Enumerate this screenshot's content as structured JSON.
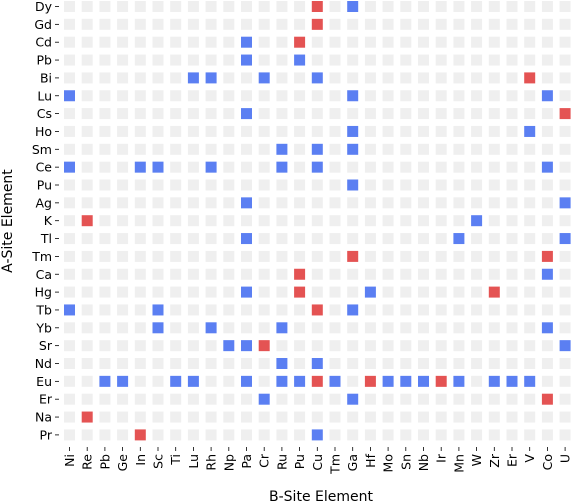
{
  "chart_data": {
    "type": "heatmap",
    "title": "",
    "xlabel": "B-Site Element",
    "ylabel": "A-Site Element",
    "x_categories": [
      "Ni",
      "Re",
      "Pb",
      "Ge",
      "In",
      "Sc",
      "Ti",
      "Lu",
      "Rh",
      "Np",
      "Pa",
      "Cr",
      "Ru",
      "Pu",
      "Cu",
      "Tm",
      "Ga",
      "Hf",
      "Mo",
      "Sn",
      "Nb",
      "Ir",
      "Mn",
      "W",
      "Zr",
      "Er",
      "V",
      "Co",
      "U"
    ],
    "y_categories": [
      "Dy",
      "Gd",
      "Cd",
      "Pb",
      "Bi",
      "Lu",
      "Cs",
      "Ho",
      "Sm",
      "Ce",
      "Pu",
      "Ag",
      "K",
      "Tl",
      "Tm",
      "Ca",
      "Hg",
      "Tb",
      "Yb",
      "Sr",
      "Nd",
      "Eu",
      "Er",
      "Na",
      "Pr"
    ],
    "grid": false,
    "legend": "none",
    "colors": {
      "empty": "#efefef",
      "blue": "#5b7ff2",
      "red": "#e45353"
    },
    "cells": [
      {
        "a": "Dy",
        "b": "Cu",
        "v": "red"
      },
      {
        "a": "Dy",
        "b": "Ga",
        "v": "blue"
      },
      {
        "a": "Gd",
        "b": "Cu",
        "v": "red"
      },
      {
        "a": "Cd",
        "b": "Pa",
        "v": "blue"
      },
      {
        "a": "Cd",
        "b": "Pu",
        "v": "red"
      },
      {
        "a": "Pb",
        "b": "Pa",
        "v": "blue"
      },
      {
        "a": "Pb",
        "b": "Pu",
        "v": "blue"
      },
      {
        "a": "Bi",
        "b": "Lu",
        "v": "blue"
      },
      {
        "a": "Bi",
        "b": "Rh",
        "v": "blue"
      },
      {
        "a": "Bi",
        "b": "Cr",
        "v": "blue"
      },
      {
        "a": "Bi",
        "b": "Cu",
        "v": "blue"
      },
      {
        "a": "Bi",
        "b": "V",
        "v": "red"
      },
      {
        "a": "Lu",
        "b": "Ni",
        "v": "blue"
      },
      {
        "a": "Lu",
        "b": "Ga",
        "v": "blue"
      },
      {
        "a": "Lu",
        "b": "Co",
        "v": "blue"
      },
      {
        "a": "Cs",
        "b": "Pa",
        "v": "blue"
      },
      {
        "a": "Cs",
        "b": "U",
        "v": "red"
      },
      {
        "a": "Ho",
        "b": "Ga",
        "v": "blue"
      },
      {
        "a": "Ho",
        "b": "V",
        "v": "blue"
      },
      {
        "a": "Sm",
        "b": "Ru",
        "v": "blue"
      },
      {
        "a": "Sm",
        "b": "Cu",
        "v": "blue"
      },
      {
        "a": "Sm",
        "b": "Ga",
        "v": "blue"
      },
      {
        "a": "Ce",
        "b": "Ni",
        "v": "blue"
      },
      {
        "a": "Ce",
        "b": "In",
        "v": "blue"
      },
      {
        "a": "Ce",
        "b": "Sc",
        "v": "blue"
      },
      {
        "a": "Ce",
        "b": "Rh",
        "v": "blue"
      },
      {
        "a": "Ce",
        "b": "Ru",
        "v": "blue"
      },
      {
        "a": "Ce",
        "b": "Cu",
        "v": "blue"
      },
      {
        "a": "Ce",
        "b": "Co",
        "v": "blue"
      },
      {
        "a": "Pu",
        "b": "Ga",
        "v": "blue"
      },
      {
        "a": "Ag",
        "b": "Pa",
        "v": "blue"
      },
      {
        "a": "Ag",
        "b": "U",
        "v": "blue"
      },
      {
        "a": "K",
        "b": "Re",
        "v": "red"
      },
      {
        "a": "K",
        "b": "W",
        "v": "blue"
      },
      {
        "a": "Tl",
        "b": "Pa",
        "v": "blue"
      },
      {
        "a": "Tl",
        "b": "Mn",
        "v": "blue"
      },
      {
        "a": "Tl",
        "b": "U",
        "v": "blue"
      },
      {
        "a": "Tm",
        "b": "Ga",
        "v": "red"
      },
      {
        "a": "Tm",
        "b": "Co",
        "v": "red"
      },
      {
        "a": "Ca",
        "b": "Pu",
        "v": "red"
      },
      {
        "a": "Ca",
        "b": "Co",
        "v": "blue"
      },
      {
        "a": "Hg",
        "b": "Pa",
        "v": "blue"
      },
      {
        "a": "Hg",
        "b": "Pu",
        "v": "red"
      },
      {
        "a": "Hg",
        "b": "Hf",
        "v": "blue"
      },
      {
        "a": "Hg",
        "b": "Zr",
        "v": "red"
      },
      {
        "a": "Tb",
        "b": "Ni",
        "v": "blue"
      },
      {
        "a": "Tb",
        "b": "Sc",
        "v": "blue"
      },
      {
        "a": "Tb",
        "b": "Cu",
        "v": "red"
      },
      {
        "a": "Tb",
        "b": "Ga",
        "v": "blue"
      },
      {
        "a": "Yb",
        "b": "Sc",
        "v": "blue"
      },
      {
        "a": "Yb",
        "b": "Rh",
        "v": "blue"
      },
      {
        "a": "Yb",
        "b": "Ru",
        "v": "blue"
      },
      {
        "a": "Yb",
        "b": "Co",
        "v": "blue"
      },
      {
        "a": "Sr",
        "b": "Np",
        "v": "blue"
      },
      {
        "a": "Sr",
        "b": "Pa",
        "v": "blue"
      },
      {
        "a": "Sr",
        "b": "Cr",
        "v": "red"
      },
      {
        "a": "Sr",
        "b": "U",
        "v": "blue"
      },
      {
        "a": "Nd",
        "b": "Ru",
        "v": "blue"
      },
      {
        "a": "Nd",
        "b": "Cu",
        "v": "blue"
      },
      {
        "a": "Eu",
        "b": "Pb",
        "v": "blue"
      },
      {
        "a": "Eu",
        "b": "Ge",
        "v": "blue"
      },
      {
        "a": "Eu",
        "b": "Ti",
        "v": "blue"
      },
      {
        "a": "Eu",
        "b": "Lu",
        "v": "blue"
      },
      {
        "a": "Eu",
        "b": "Pa",
        "v": "blue"
      },
      {
        "a": "Eu",
        "b": "Ru",
        "v": "blue"
      },
      {
        "a": "Eu",
        "b": "Pu",
        "v": "blue"
      },
      {
        "a": "Eu",
        "b": "Cu",
        "v": "red"
      },
      {
        "a": "Eu",
        "b": "Tm",
        "v": "blue"
      },
      {
        "a": "Eu",
        "b": "Hf",
        "v": "red"
      },
      {
        "a": "Eu",
        "b": "Mo",
        "v": "blue"
      },
      {
        "a": "Eu",
        "b": "Sn",
        "v": "blue"
      },
      {
        "a": "Eu",
        "b": "Nb",
        "v": "blue"
      },
      {
        "a": "Eu",
        "b": "Ir",
        "v": "red"
      },
      {
        "a": "Eu",
        "b": "Mn",
        "v": "blue"
      },
      {
        "a": "Eu",
        "b": "Zr",
        "v": "blue"
      },
      {
        "a": "Eu",
        "b": "Er",
        "v": "blue"
      },
      {
        "a": "Eu",
        "b": "V",
        "v": "blue"
      },
      {
        "a": "Er",
        "b": "Cr",
        "v": "blue"
      },
      {
        "a": "Er",
        "b": "Ga",
        "v": "blue"
      },
      {
        "a": "Er",
        "b": "Co",
        "v": "red"
      },
      {
        "a": "Na",
        "b": "Re",
        "v": "red"
      },
      {
        "a": "Pr",
        "b": "In",
        "v": "red"
      },
      {
        "a": "Pr",
        "b": "Cu",
        "v": "blue"
      }
    ]
  }
}
